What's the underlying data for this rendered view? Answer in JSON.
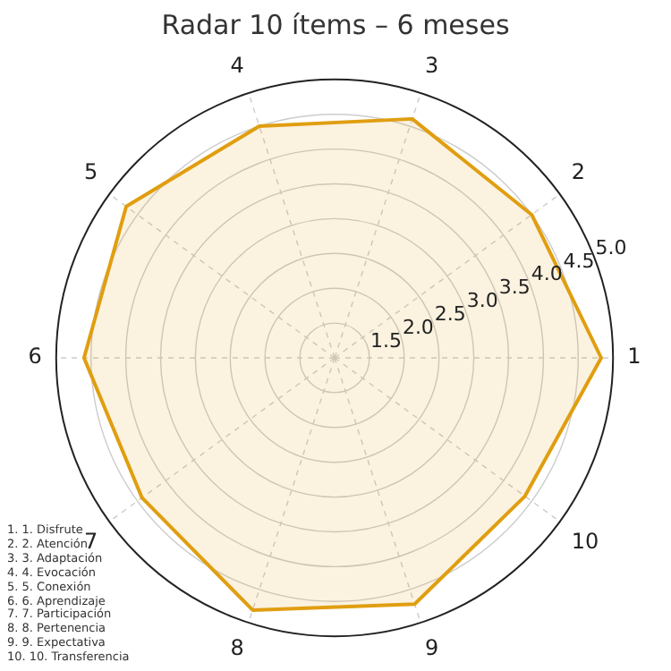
{
  "chart_data": {
    "type": "radar",
    "title": "Radar 10 ítems – 6 meses",
    "categories": [
      "3",
      "2",
      "1",
      "10",
      "9",
      "8",
      "7",
      "6",
      "5",
      "4"
    ],
    "series": [
      {
        "color": "#e09e10",
        "values": [
          4.61,
          4.5,
          4.83,
          4.38,
          4.72,
          4.81,
          4.42,
          4.6,
          4.7,
          4.5
        ]
      }
    ],
    "ylim": [
      1,
      5
    ],
    "yticks": [
      {
        "value": 1.5,
        "label": "1.5"
      },
      {
        "value": 2,
        "label": "2.0"
      },
      {
        "value": 2.5,
        "label": "2.5"
      },
      {
        "value": 3,
        "label": "3.0"
      },
      {
        "value": 3.5,
        "label": "3.5"
      },
      {
        "value": 4,
        "label": "4.0"
      },
      {
        "value": 4.5,
        "label": "4.5"
      },
      {
        "value": 5,
        "label": "5.0"
      }
    ],
    "grid": true,
    "legend": false,
    "marker": "none",
    "annotations": [
      "1. 1. Disfrute",
      "2. 2. Atención",
      "3. 3. Adaptación",
      "4. 4. Evocación",
      "5. 5. Conexión",
      "6. 6. Aprendizaje",
      "7. 7. Participación",
      "8. 8. Pertenencia",
      "9. 9. Expectativa",
      "10. 10. Transferencia"
    ]
  }
}
